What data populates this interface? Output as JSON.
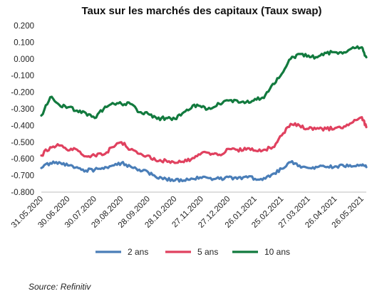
{
  "chart_data": {
    "type": "line",
    "title": "Taux sur les marchés des capitaux (Taux swap)",
    "source": "Source: Refinitiv",
    "xlabel": "",
    "ylabel": "",
    "ylim": [
      -0.8,
      0.2
    ],
    "yticks": [
      "0.200",
      "0.100",
      "0.000",
      "-0.100",
      "-0.200",
      "-0.300",
      "-0.400",
      "-0.500",
      "-0.600",
      "-0.700",
      "-0.800"
    ],
    "x_tick_labels": [
      "31.05.2020",
      "30.06.2020",
      "30.07.2020",
      "29.08.2020",
      "28.09.2020",
      "28.10.2020",
      "27.11.2020",
      "27.12.2020",
      "26.01.2021",
      "25.02.2021",
      "27.03.2021",
      "26.04.2021",
      "26.05.2021"
    ],
    "legend_position": "bottom",
    "grid": false,
    "x": [
      "31.05.2020",
      "10.06.2020",
      "20.06.2020",
      "30.06.2020",
      "10.07.2020",
      "20.07.2020",
      "30.07.2020",
      "09.08.2020",
      "19.08.2020",
      "29.08.2020",
      "08.09.2020",
      "18.09.2020",
      "28.09.2020",
      "08.10.2020",
      "18.10.2020",
      "28.10.2020",
      "07.11.2020",
      "17.11.2020",
      "27.11.2020",
      "07.12.2020",
      "17.12.2020",
      "27.12.2020",
      "06.01.2021",
      "16.01.2021",
      "26.01.2021",
      "05.02.2021",
      "15.02.2021",
      "25.02.2021",
      "07.03.2021",
      "17.03.2021",
      "27.03.2021",
      "06.04.2021",
      "16.04.2021",
      "26.04.2021",
      "06.05.2021",
      "16.05.2021",
      "26.05.2021",
      "31.05.2021"
    ],
    "series": [
      {
        "name": "2 ans",
        "color": "#4a7eb8",
        "values": [
          -0.655,
          -0.625,
          -0.62,
          -0.64,
          -0.65,
          -0.67,
          -0.665,
          -0.66,
          -0.64,
          -0.625,
          -0.645,
          -0.665,
          -0.68,
          -0.715,
          -0.72,
          -0.73,
          -0.73,
          -0.72,
          -0.715,
          -0.715,
          -0.72,
          -0.71,
          -0.72,
          -0.705,
          -0.72,
          -0.715,
          -0.69,
          -0.66,
          -0.62,
          -0.64,
          -0.655,
          -0.65,
          -0.65,
          -0.645,
          -0.645,
          -0.645,
          -0.64,
          -0.65
        ]
      },
      {
        "name": "5 ans",
        "color": "#e0415f",
        "values": [
          -0.58,
          -0.53,
          -0.52,
          -0.55,
          -0.545,
          -0.585,
          -0.58,
          -0.575,
          -0.53,
          -0.5,
          -0.545,
          -0.57,
          -0.58,
          -0.615,
          -0.61,
          -0.625,
          -0.62,
          -0.595,
          -0.565,
          -0.575,
          -0.575,
          -0.54,
          -0.545,
          -0.545,
          -0.55,
          -0.545,
          -0.53,
          -0.46,
          -0.39,
          -0.4,
          -0.42,
          -0.415,
          -0.42,
          -0.415,
          -0.405,
          -0.38,
          -0.35,
          -0.41
        ]
      },
      {
        "name": "10 ans",
        "color": "#127a3e",
        "values": [
          -0.34,
          -0.23,
          -0.275,
          -0.29,
          -0.31,
          -0.325,
          -0.355,
          -0.3,
          -0.265,
          -0.27,
          -0.27,
          -0.32,
          -0.33,
          -0.36,
          -0.355,
          -0.36,
          -0.32,
          -0.28,
          -0.29,
          -0.3,
          -0.27,
          -0.25,
          -0.25,
          -0.26,
          -0.24,
          -0.235,
          -0.15,
          -0.09,
          0.0,
          0.03,
          0.02,
          0.01,
          0.035,
          0.04,
          0.04,
          0.07,
          0.07,
          0.01
        ]
      }
    ]
  }
}
